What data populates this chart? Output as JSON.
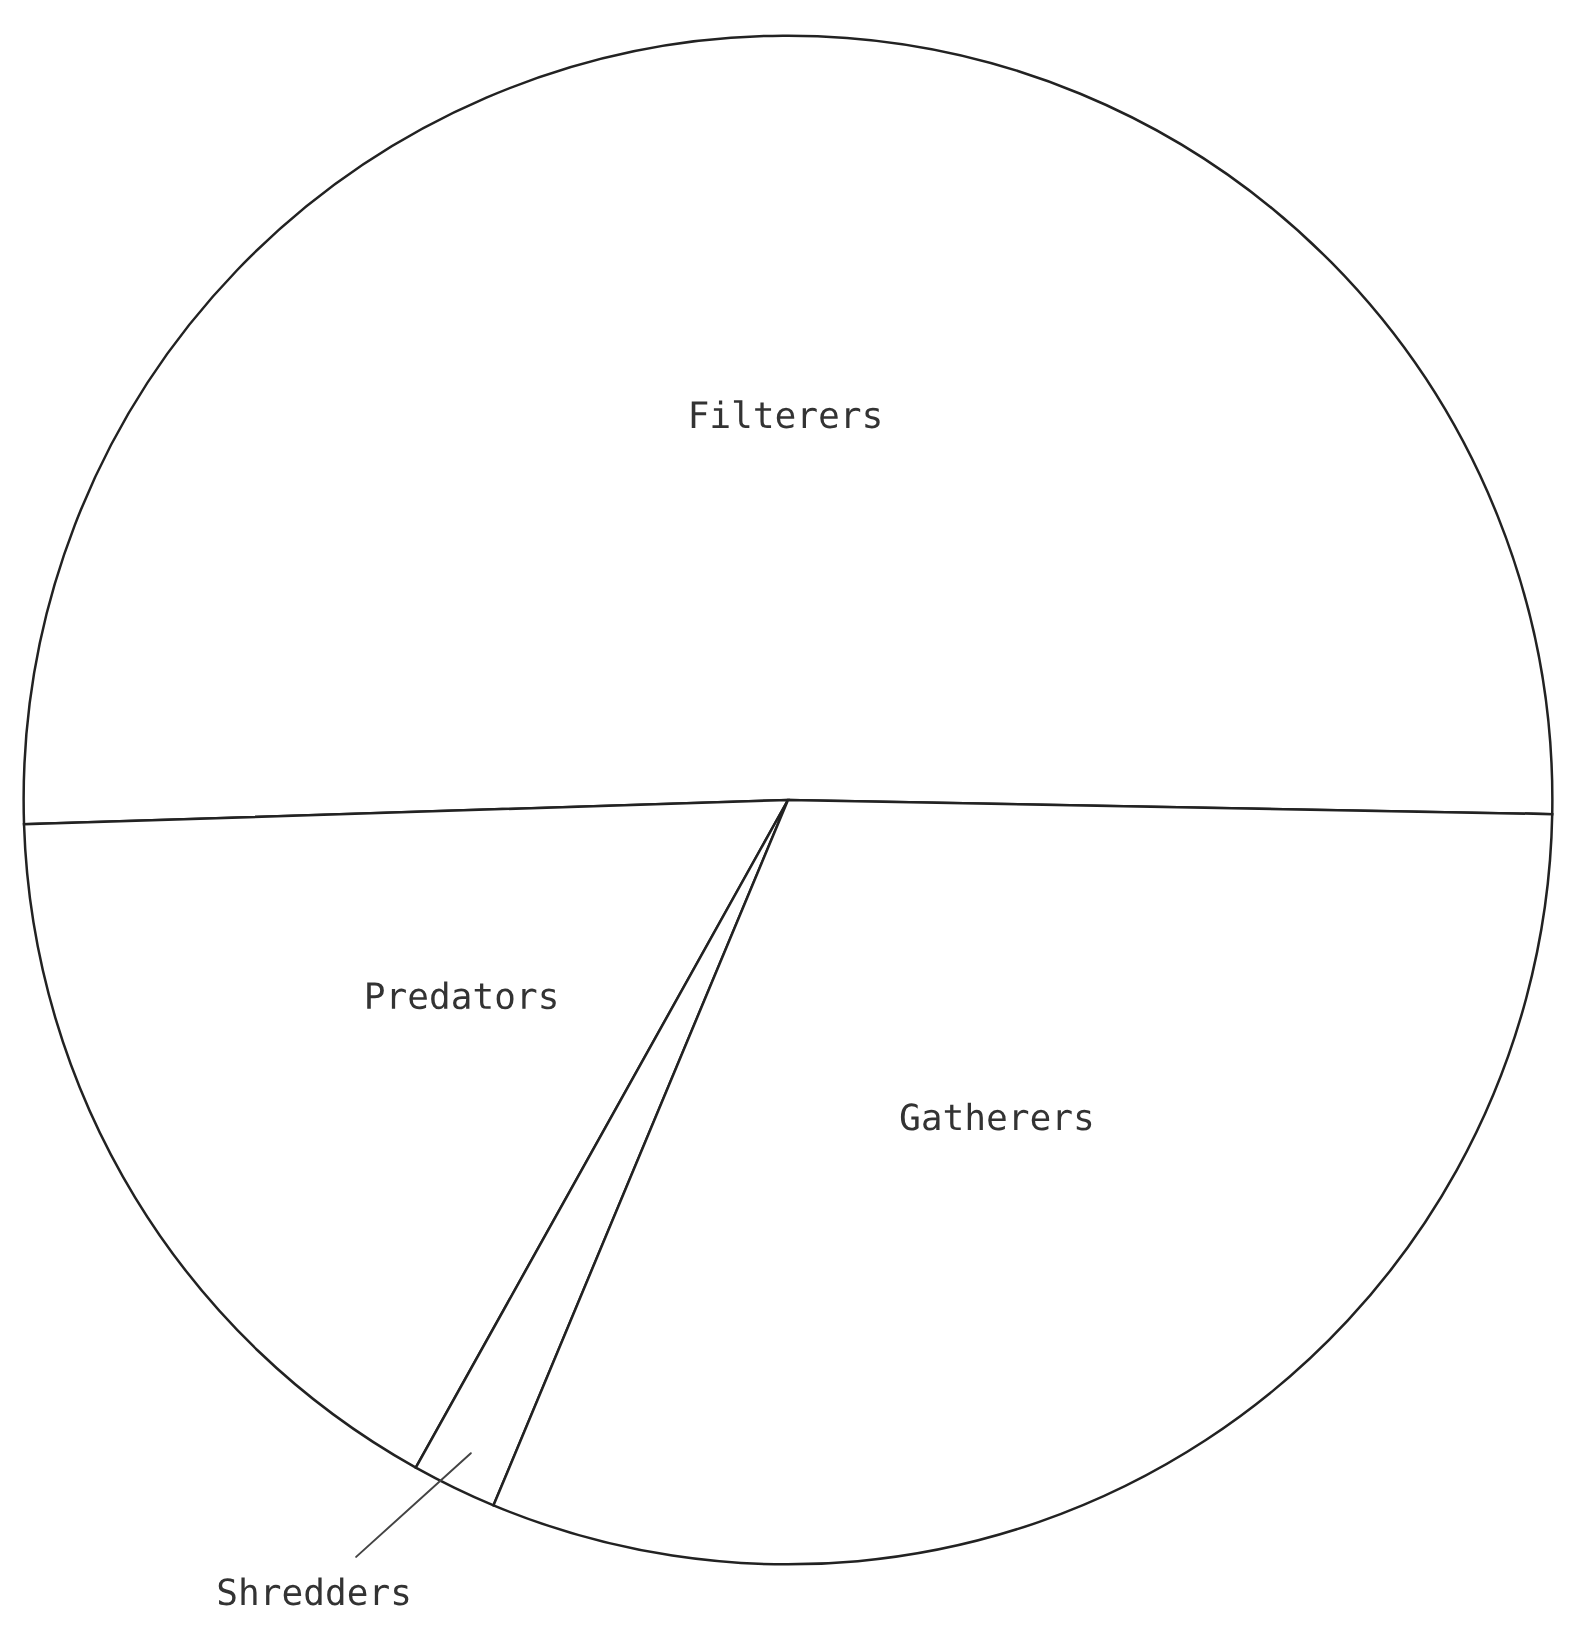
{
  "chart_data": {
    "type": "pie",
    "categories": [
      "Filterers",
      "Predators",
      "Shredders",
      "Gatherers"
    ],
    "values": [
      50.8,
      16.4,
      1.8,
      31.0
    ],
    "colors": [
      "#ffffff",
      "#ffffff",
      "#ffffff",
      "#ffffff"
    ],
    "legend": false
  }
}
